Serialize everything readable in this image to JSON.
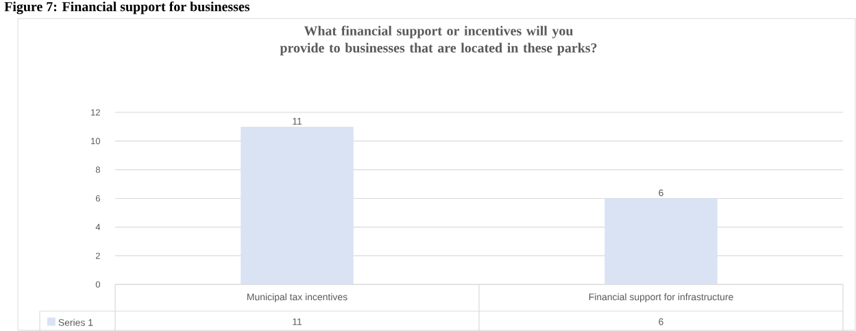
{
  "chart_data": {
    "type": "bar",
    "title": "What financial support or incentives will you provide to businesses that are located in these parks?",
    "annotations": [
      "Figure 7: Financial support for businesses",
      "11",
      "6"
    ],
    "categories": [
      "Municipal tax incentives",
      "Financial support for infrastructure"
    ],
    "series": [
      {
        "name": "Series 1",
        "color": "#dae3f3",
        "values": [
          11,
          6
        ]
      }
    ],
    "ylim": [
      0,
      12
    ],
    "yticks": [
      0,
      2,
      4,
      6,
      8,
      10,
      12
    ],
    "grid": "y",
    "data_labels": true,
    "legend": "bottom"
  }
}
